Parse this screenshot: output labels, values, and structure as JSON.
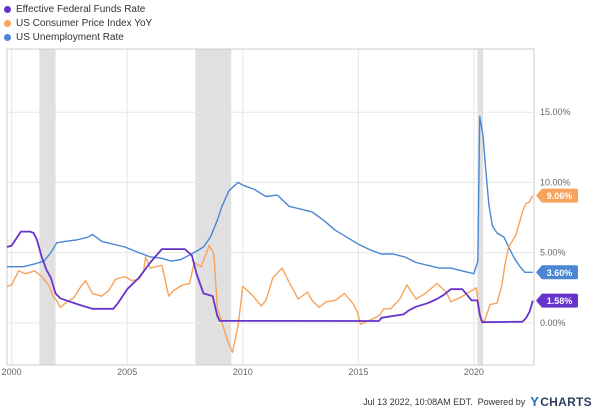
{
  "legend": [
    {
      "label": "Effective Federal Funds Rate",
      "color": "#6633cc"
    },
    {
      "label": "US Consumer Price Index YoY",
      "color": "#f7a35c"
    },
    {
      "label": "US Unemployment Rate",
      "color": "#4a86d4"
    }
  ],
  "footer": {
    "timestamp": "Jul 13 2022, 10:08AM EDT.",
    "powered_by": "Powered by",
    "brand_y": "Y",
    "brand": "CHARTS"
  },
  "chart_data": {
    "type": "line",
    "x_ticks": [
      "2000",
      "2005",
      "2010",
      "2015",
      "2020"
    ],
    "x_tick_values": [
      2000,
      2005,
      2010,
      2015,
      2020
    ],
    "y_ticks": [
      "0.00%",
      "5.00%",
      "10.00%",
      "15.00%"
    ],
    "y_tick_values": [
      0,
      5,
      10,
      15
    ],
    "xlim": [
      1999.8,
      2022.6
    ],
    "ylim": [
      -3.0,
      19.5
    ],
    "grid": true,
    "legend_position": "top-left",
    "recessions": [
      [
        2001.2,
        2001.9
      ],
      [
        2007.95,
        2009.5
      ],
      [
        2020.15,
        2020.4
      ]
    ],
    "series": [
      {
        "name": "Effective Federal Funds Rate",
        "color": "#6633cc",
        "end_label": "1.58%",
        "points": [
          [
            1999.8,
            5.4
          ],
          [
            2000.0,
            5.5
          ],
          [
            2000.2,
            6.0
          ],
          [
            2000.4,
            6.5
          ],
          [
            2000.6,
            6.5
          ],
          [
            2000.8,
            6.5
          ],
          [
            2000.95,
            6.4
          ],
          [
            2001.1,
            5.9
          ],
          [
            2001.3,
            4.7
          ],
          [
            2001.5,
            3.8
          ],
          [
            2001.7,
            3.2
          ],
          [
            2001.9,
            2.1
          ],
          [
            2002.1,
            1.75
          ],
          [
            2002.9,
            1.3
          ],
          [
            2003.5,
            1.0
          ],
          [
            2004.4,
            1.0
          ],
          [
            2004.6,
            1.4
          ],
          [
            2005.0,
            2.4
          ],
          [
            2005.5,
            3.2
          ],
          [
            2006.0,
            4.3
          ],
          [
            2006.5,
            5.25
          ],
          [
            2007.5,
            5.25
          ],
          [
            2007.8,
            4.8
          ],
          [
            2008.0,
            3.5
          ],
          [
            2008.3,
            2.1
          ],
          [
            2008.7,
            1.9
          ],
          [
            2008.9,
            0.5
          ],
          [
            2009.0,
            0.15
          ],
          [
            2015.9,
            0.13
          ],
          [
            2016.0,
            0.36
          ],
          [
            2016.95,
            0.6
          ],
          [
            2017.2,
            0.9
          ],
          [
            2017.5,
            1.15
          ],
          [
            2018.0,
            1.4
          ],
          [
            2018.4,
            1.7
          ],
          [
            2018.7,
            2.0
          ],
          [
            2019.0,
            2.4
          ],
          [
            2019.5,
            2.4
          ],
          [
            2019.7,
            2.0
          ],
          [
            2019.9,
            1.6
          ],
          [
            2020.15,
            1.6
          ],
          [
            2020.25,
            0.6
          ],
          [
            2020.35,
            0.05
          ],
          [
            2022.1,
            0.08
          ],
          [
            2022.25,
            0.33
          ],
          [
            2022.4,
            0.77
          ],
          [
            2022.55,
            1.58
          ]
        ]
      },
      {
        "name": "US Consumer Price Index YoY",
        "color": "#f7a35c",
        "end_label": "9.06%",
        "points": [
          [
            1999.8,
            2.6
          ],
          [
            2000.0,
            2.7
          ],
          [
            2000.3,
            3.7
          ],
          [
            2000.6,
            3.5
          ],
          [
            2001.0,
            3.7
          ],
          [
            2001.3,
            3.3
          ],
          [
            2001.6,
            2.7
          ],
          [
            2001.8,
            1.9
          ],
          [
            2001.95,
            1.6
          ],
          [
            2002.1,
            1.1
          ],
          [
            2002.4,
            1.5
          ],
          [
            2002.7,
            1.8
          ],
          [
            2003.0,
            2.6
          ],
          [
            2003.2,
            3.0
          ],
          [
            2003.5,
            2.1
          ],
          [
            2003.9,
            1.9
          ],
          [
            2004.2,
            2.3
          ],
          [
            2004.5,
            3.1
          ],
          [
            2004.9,
            3.3
          ],
          [
            2005.2,
            3.0
          ],
          [
            2005.5,
            3.1
          ],
          [
            2005.7,
            3.6
          ],
          [
            2005.8,
            4.7
          ],
          [
            2006.0,
            3.9
          ],
          [
            2006.5,
            4.1
          ],
          [
            2006.8,
            1.9
          ],
          [
            2007.0,
            2.3
          ],
          [
            2007.4,
            2.7
          ],
          [
            2007.7,
            2.8
          ],
          [
            2007.9,
            4.3
          ],
          [
            2008.2,
            4.0
          ],
          [
            2008.55,
            5.5
          ],
          [
            2008.75,
            4.9
          ],
          [
            2008.9,
            1.1
          ],
          [
            2009.1,
            0.0
          ],
          [
            2009.35,
            -1.3
          ],
          [
            2009.55,
            -2.1
          ],
          [
            2009.8,
            -0.2
          ],
          [
            2010.0,
            2.6
          ],
          [
            2010.4,
            2.0
          ],
          [
            2010.8,
            1.2
          ],
          [
            2011.0,
            1.6
          ],
          [
            2011.3,
            3.2
          ],
          [
            2011.7,
            3.9
          ],
          [
            2012.0,
            2.9
          ],
          [
            2012.4,
            1.7
          ],
          [
            2012.8,
            2.2
          ],
          [
            2013.0,
            1.6
          ],
          [
            2013.3,
            1.1
          ],
          [
            2013.6,
            1.5
          ],
          [
            2014.0,
            1.6
          ],
          [
            2014.4,
            2.1
          ],
          [
            2014.8,
            1.3
          ],
          [
            2014.95,
            0.8
          ],
          [
            2015.1,
            -0.1
          ],
          [
            2015.5,
            0.2
          ],
          [
            2015.9,
            0.5
          ],
          [
            2016.1,
            1.0
          ],
          [
            2016.4,
            1.0
          ],
          [
            2016.8,
            1.7
          ],
          [
            2017.1,
            2.7
          ],
          [
            2017.5,
            1.7
          ],
          [
            2017.9,
            2.1
          ],
          [
            2018.4,
            2.8
          ],
          [
            2018.8,
            2.2
          ],
          [
            2019.0,
            1.5
          ],
          [
            2019.4,
            1.8
          ],
          [
            2019.9,
            2.3
          ],
          [
            2020.1,
            2.5
          ],
          [
            2020.3,
            0.3
          ],
          [
            2020.45,
            0.1
          ],
          [
            2020.7,
            1.3
          ],
          [
            2021.0,
            1.4
          ],
          [
            2021.2,
            2.6
          ],
          [
            2021.35,
            4.2
          ],
          [
            2021.5,
            5.4
          ],
          [
            2021.8,
            6.2
          ],
          [
            2021.95,
            7.0
          ],
          [
            2022.1,
            7.9
          ],
          [
            2022.25,
            8.5
          ],
          [
            2022.4,
            8.6
          ],
          [
            2022.55,
            9.06
          ]
        ]
      },
      {
        "name": "US Unemployment Rate",
        "color": "#4a86d4",
        "end_label": "3.60%",
        "points": [
          [
            1999.8,
            4.0
          ],
          [
            2000.0,
            4.0
          ],
          [
            2000.5,
            4.0
          ],
          [
            2001.0,
            4.2
          ],
          [
            2001.4,
            4.4
          ],
          [
            2001.7,
            5.0
          ],
          [
            2001.95,
            5.7
          ],
          [
            2002.3,
            5.8
          ],
          [
            2002.8,
            5.9
          ],
          [
            2003.3,
            6.1
          ],
          [
            2003.5,
            6.3
          ],
          [
            2003.9,
            5.8
          ],
          [
            2004.4,
            5.6
          ],
          [
            2004.9,
            5.4
          ],
          [
            2005.5,
            5.0
          ],
          [
            2006.0,
            4.7
          ],
          [
            2006.5,
            4.6
          ],
          [
            2006.9,
            4.4
          ],
          [
            2007.3,
            4.5
          ],
          [
            2007.9,
            5.0
          ],
          [
            2008.3,
            5.4
          ],
          [
            2008.6,
            6.1
          ],
          [
            2008.9,
            7.3
          ],
          [
            2009.1,
            8.3
          ],
          [
            2009.4,
            9.4
          ],
          [
            2009.8,
            10.0
          ],
          [
            2010.0,
            9.8
          ],
          [
            2010.5,
            9.5
          ],
          [
            2011.0,
            9.0
          ],
          [
            2011.5,
            9.1
          ],
          [
            2012.0,
            8.3
          ],
          [
            2012.5,
            8.1
          ],
          [
            2013.0,
            7.9
          ],
          [
            2013.5,
            7.3
          ],
          [
            2014.0,
            6.6
          ],
          [
            2014.5,
            6.1
          ],
          [
            2015.0,
            5.6
          ],
          [
            2015.5,
            5.2
          ],
          [
            2016.0,
            4.9
          ],
          [
            2016.5,
            4.9
          ],
          [
            2017.0,
            4.7
          ],
          [
            2017.5,
            4.3
          ],
          [
            2018.0,
            4.1
          ],
          [
            2018.5,
            3.9
          ],
          [
            2019.0,
            3.9
          ],
          [
            2019.5,
            3.7
          ],
          [
            2020.0,
            3.5
          ],
          [
            2020.17,
            4.4
          ],
          [
            2020.25,
            14.7
          ],
          [
            2020.4,
            13.3
          ],
          [
            2020.5,
            11.1
          ],
          [
            2020.65,
            8.4
          ],
          [
            2020.8,
            6.9
          ],
          [
            2021.0,
            6.4
          ],
          [
            2021.3,
            6.1
          ],
          [
            2021.5,
            5.4
          ],
          [
            2021.75,
            4.6
          ],
          [
            2022.0,
            4.0
          ],
          [
            2022.2,
            3.6
          ],
          [
            2022.55,
            3.6
          ]
        ]
      }
    ]
  }
}
